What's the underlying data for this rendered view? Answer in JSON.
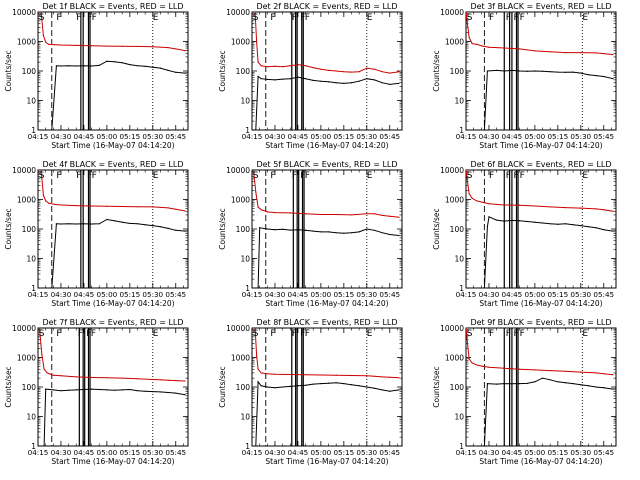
{
  "figure": {
    "ylabel": "Counts/sec",
    "xlabel": "Start Time (16-May-07 04:14:20)",
    "ytick_labels": [
      "1",
      "10",
      "100",
      "1000",
      "10000"
    ],
    "ytick_values": [
      1,
      10,
      100,
      1000,
      10000
    ],
    "xtick_labels": [
      "04:15",
      "04:30",
      "04:45",
      "05:00",
      "05:15",
      "05:30",
      "05:45"
    ],
    "xtick_values_min": [
      15,
      30,
      45,
      60,
      75,
      90,
      105
    ],
    "xlim_min": [
      15,
      113
    ],
    "ylim": [
      1,
      10000
    ],
    "marker_labels": [
      "S",
      "F",
      "F",
      "F",
      "F",
      "E"
    ],
    "colors": {
      "events": "#000000",
      "lld": "#cc0000"
    }
  },
  "chart_data": [
    {
      "type": "line",
      "title": "Det 1f  BLACK = Events, RED = LLD",
      "dashed_line_min": 24,
      "solid_lines_min": [
        43,
        44.5,
        48,
        49
      ],
      "markers_min": {
        "S": 15.5,
        "F": [
          27,
          40,
          47,
          50
        ],
        "E": 90
      },
      "series": [
        {
          "name": "Events",
          "color": "#000000",
          "x": [
            24,
            27,
            30,
            35,
            40,
            45,
            50,
            55,
            60,
            65,
            70,
            75,
            80,
            85,
            90,
            95,
            100,
            105,
            111
          ],
          "y": [
            1,
            150,
            148,
            150,
            148,
            150,
            148,
            155,
            215,
            205,
            190,
            165,
            150,
            145,
            135,
            125,
            105,
            90,
            85
          ]
        },
        {
          "name": "LLD",
          "color": "#cc0000",
          "x": [
            17,
            18.5,
            20,
            22,
            26,
            30,
            40,
            50,
            60,
            70,
            80,
            90,
            100,
            105,
            111
          ],
          "y": [
            10000,
            1600,
            950,
            800,
            780,
            760,
            740,
            720,
            700,
            690,
            680,
            660,
            620,
            560,
            490
          ]
        }
      ]
    },
    {
      "type": "line",
      "title": "Det 2f  BLACK = Events, RED = LLD",
      "dashed_line_min": 24,
      "solid_lines_min": [
        41,
        43.5,
        44.5,
        47.5,
        48.5
      ],
      "markers_min": {
        "S": 15.5,
        "F": [
          27,
          41,
          46.5,
          49.5
        ],
        "E": 90
      },
      "series": [
        {
          "name": "Events",
          "color": "#000000",
          "x": [
            17.5,
            19,
            21,
            25,
            30,
            35,
            40,
            45,
            50,
            55,
            60,
            65,
            70,
            75,
            80,
            85,
            90,
            95,
            100,
            105,
            111
          ],
          "y": [
            1,
            65,
            55,
            52,
            50,
            53,
            55,
            62,
            55,
            48,
            45,
            43,
            40,
            38,
            40,
            45,
            55,
            50,
            40,
            35,
            38
          ]
        },
        {
          "name": "LLD",
          "color": "#cc0000",
          "x": [
            17,
            18,
            19,
            21,
            25,
            30,
            35,
            40,
            45,
            50,
            55,
            60,
            65,
            70,
            75,
            80,
            85,
            90,
            95,
            100,
            105,
            111
          ],
          "y": [
            10000,
            1000,
            200,
            150,
            140,
            145,
            140,
            150,
            165,
            150,
            130,
            115,
            105,
            100,
            95,
            92,
            95,
            125,
            115,
            95,
            85,
            95
          ]
        }
      ]
    },
    {
      "type": "line",
      "title": "Det 3f  BLACK = Events, RED = LLD",
      "dashed_line_min": 27,
      "solid_lines_min": [
        40,
        43.5,
        45,
        48,
        49
      ],
      "markers_min": {
        "S": 15.5,
        "F": [
          30,
          41,
          46,
          50
        ],
        "E": 91
      },
      "series": [
        {
          "name": "Events",
          "color": "#000000",
          "x": [
            27,
            29,
            35,
            40,
            45,
            50,
            55,
            60,
            65,
            70,
            75,
            80,
            85,
            90,
            95,
            100,
            105,
            111
          ],
          "y": [
            1,
            100,
            105,
            100,
            105,
            100,
            98,
            100,
            98,
            95,
            92,
            90,
            92,
            85,
            75,
            70,
            65,
            55
          ]
        },
        {
          "name": "LLD",
          "color": "#cc0000",
          "x": [
            15,
            17,
            19,
            22,
            26,
            30,
            40,
            50,
            60,
            70,
            80,
            90,
            100,
            105,
            111
          ],
          "y": [
            10000,
            1400,
            850,
            800,
            700,
            640,
            600,
            560,
            480,
            450,
            420,
            420,
            410,
            390,
            360
          ]
        }
      ]
    },
    {
      "type": "line",
      "title": "Det 4f  BLACK = Events, RED = LLD",
      "dashed_line_min": 24,
      "solid_lines_min": [
        43,
        44.5,
        48,
        49
      ],
      "markers_min": {
        "S": 15.5,
        "F": [
          27,
          40,
          47,
          50
        ],
        "E": 90
      },
      "series": [
        {
          "name": "Events",
          "color": "#000000",
          "x": [
            24,
            27,
            30,
            35,
            40,
            45,
            50,
            55,
            60,
            65,
            70,
            75,
            80,
            85,
            90,
            95,
            100,
            105,
            111
          ],
          "y": [
            1,
            150,
            148,
            150,
            148,
            150,
            148,
            150,
            210,
            190,
            170,
            155,
            150,
            140,
            130,
            120,
            105,
            90,
            85
          ]
        },
        {
          "name": "LLD",
          "color": "#cc0000",
          "x": [
            17,
            18.5,
            20,
            22,
            26,
            30,
            40,
            50,
            60,
            70,
            80,
            90,
            100,
            105,
            111
          ],
          "y": [
            10000,
            1400,
            900,
            750,
            680,
            650,
            620,
            600,
            590,
            580,
            570,
            560,
            520,
            470,
            410
          ]
        }
      ]
    },
    {
      "type": "line",
      "title": "Det 5f  BLACK = Events, RED = LLD",
      "dashed_line_min": 24,
      "solid_lines_min": [
        42,
        44.5,
        45.5,
        48,
        49
      ],
      "markers_min": {
        "S": 15.5,
        "F": [
          27,
          41,
          46.5,
          49.5
        ],
        "E": 90
      },
      "series": [
        {
          "name": "Events",
          "color": "#000000",
          "x": [
            19,
            20,
            25,
            30,
            35,
            40,
            45,
            50,
            55,
            60,
            65,
            70,
            75,
            80,
            85,
            90,
            95,
            100,
            105,
            111
          ],
          "y": [
            1,
            110,
            100,
            95,
            98,
            92,
            95,
            90,
            85,
            80,
            80,
            75,
            72,
            75,
            80,
            100,
            90,
            75,
            65,
            60
          ]
        },
        {
          "name": "LLD",
          "color": "#cc0000",
          "x": [
            16,
            17.5,
            19,
            21,
            25,
            30,
            40,
            50,
            60,
            70,
            80,
            90,
            95,
            100,
            105,
            111
          ],
          "y": [
            10000,
            1800,
            550,
            450,
            380,
            360,
            350,
            330,
            310,
            310,
            300,
            330,
            330,
            290,
            270,
            250
          ]
        }
      ]
    },
    {
      "type": "line",
      "title": "Det 6f  BLACK = Events, RED = LLD",
      "dashed_line_min": 27,
      "solid_lines_min": [
        40,
        43.5,
        45,
        48,
        49
      ],
      "markers_min": {
        "S": 15.5,
        "F": [
          30,
          41,
          46,
          50
        ],
        "E": 91
      },
      "series": [
        {
          "name": "Events",
          "color": "#000000",
          "x": [
            27,
            29,
            30,
            35,
            40,
            45,
            50,
            55,
            60,
            65,
            70,
            75,
            80,
            85,
            90,
            95,
            100,
            105,
            111
          ],
          "y": [
            1,
            120,
            260,
            200,
            185,
            195,
            190,
            180,
            170,
            160,
            150,
            145,
            150,
            140,
            130,
            120,
            110,
            95,
            85
          ]
        },
        {
          "name": "LLD",
          "color": "#cc0000",
          "x": [
            15,
            17,
            19,
            22,
            26,
            30,
            40,
            50,
            60,
            70,
            80,
            90,
            100,
            105,
            111
          ],
          "y": [
            10000,
            1600,
            1100,
            900,
            800,
            720,
            650,
            640,
            600,
            560,
            530,
            510,
            480,
            450,
            400
          ]
        }
      ]
    },
    {
      "type": "line",
      "title": "Det 7f  BLACK = Events, RED = LLD",
      "dashed_line_min": 24,
      "solid_lines_min": [
        42,
        44.5,
        45.5,
        48,
        49
      ],
      "markers_min": {
        "S": 15.5,
        "F": [
          27,
          41,
          46.5,
          49.5
        ],
        "E": 90
      },
      "series": [
        {
          "name": "Events",
          "color": "#000000",
          "x": [
            19,
            20,
            25,
            30,
            35,
            40,
            45,
            50,
            55,
            60,
            65,
            70,
            75,
            80,
            85,
            90,
            95,
            100,
            105,
            111
          ],
          "y": [
            1,
            85,
            80,
            75,
            78,
            80,
            82,
            85,
            82,
            80,
            78,
            80,
            82,
            75,
            72,
            70,
            68,
            65,
            62,
            55
          ]
        },
        {
          "name": "LLD",
          "color": "#cc0000",
          "x": [
            16,
            17.5,
            19,
            21,
            25,
            30,
            40,
            50,
            60,
            70,
            80,
            90,
            95,
            100,
            105,
            111
          ],
          "y": [
            10000,
            1300,
            400,
            300,
            250,
            240,
            220,
            210,
            205,
            200,
            190,
            180,
            175,
            170,
            165,
            160
          ]
        }
      ]
    },
    {
      "type": "line",
      "title": "Det 8f  BLACK = Events, RED = LLD",
      "dashed_line_min": 24,
      "solid_lines_min": [
        41,
        43.5,
        44.5,
        47.5,
        48.5
      ],
      "markers_min": {
        "S": 15.5,
        "F": [
          27,
          41,
          46.5,
          49.5
        ],
        "E": 90
      },
      "series": [
        {
          "name": "Events",
          "color": "#000000",
          "x": [
            17.5,
            19,
            21,
            25,
            30,
            35,
            40,
            45,
            50,
            55,
            60,
            65,
            70,
            75,
            80,
            85,
            90,
            95,
            100,
            105,
            111
          ],
          "y": [
            1,
            150,
            110,
            100,
            95,
            100,
            105,
            110,
            115,
            125,
            130,
            135,
            140,
            130,
            120,
            110,
            100,
            90,
            80,
            72,
            80
          ]
        },
        {
          "name": "LLD",
          "color": "#cc0000",
          "x": [
            17,
            18,
            19,
            21,
            25,
            30,
            40,
            50,
            60,
            70,
            80,
            90,
            95,
            100,
            105,
            111
          ],
          "y": [
            10000,
            1200,
            400,
            300,
            280,
            270,
            265,
            260,
            255,
            250,
            245,
            240,
            230,
            220,
            215,
            205
          ]
        }
      ]
    },
    {
      "type": "line",
      "title": "Det 9f  BLACK = Events, RED = LLD",
      "dashed_line_min": 27,
      "solid_lines_min": [
        40,
        43.5,
        45,
        48,
        49
      ],
      "markers_min": {
        "S": 15.5,
        "F": [
          30,
          41,
          46,
          50
        ],
        "E": 91
      },
      "series": [
        {
          "name": "Events",
          "color": "#000000",
          "x": [
            27,
            29,
            35,
            40,
            45,
            50,
            55,
            60,
            65,
            70,
            75,
            80,
            85,
            90,
            95,
            100,
            105,
            111
          ],
          "y": [
            1,
            130,
            125,
            130,
            128,
            130,
            132,
            150,
            200,
            175,
            150,
            140,
            130,
            120,
            110,
            100,
            95,
            85
          ]
        },
        {
          "name": "LLD",
          "color": "#cc0000",
          "x": [
            15,
            17,
            19,
            22,
            26,
            30,
            40,
            50,
            60,
            70,
            80,
            90,
            100,
            105,
            111
          ],
          "y": [
            10000,
            900,
            650,
            560,
            500,
            470,
            430,
            400,
            380,
            360,
            340,
            320,
            300,
            280,
            260
          ]
        }
      ]
    }
  ]
}
